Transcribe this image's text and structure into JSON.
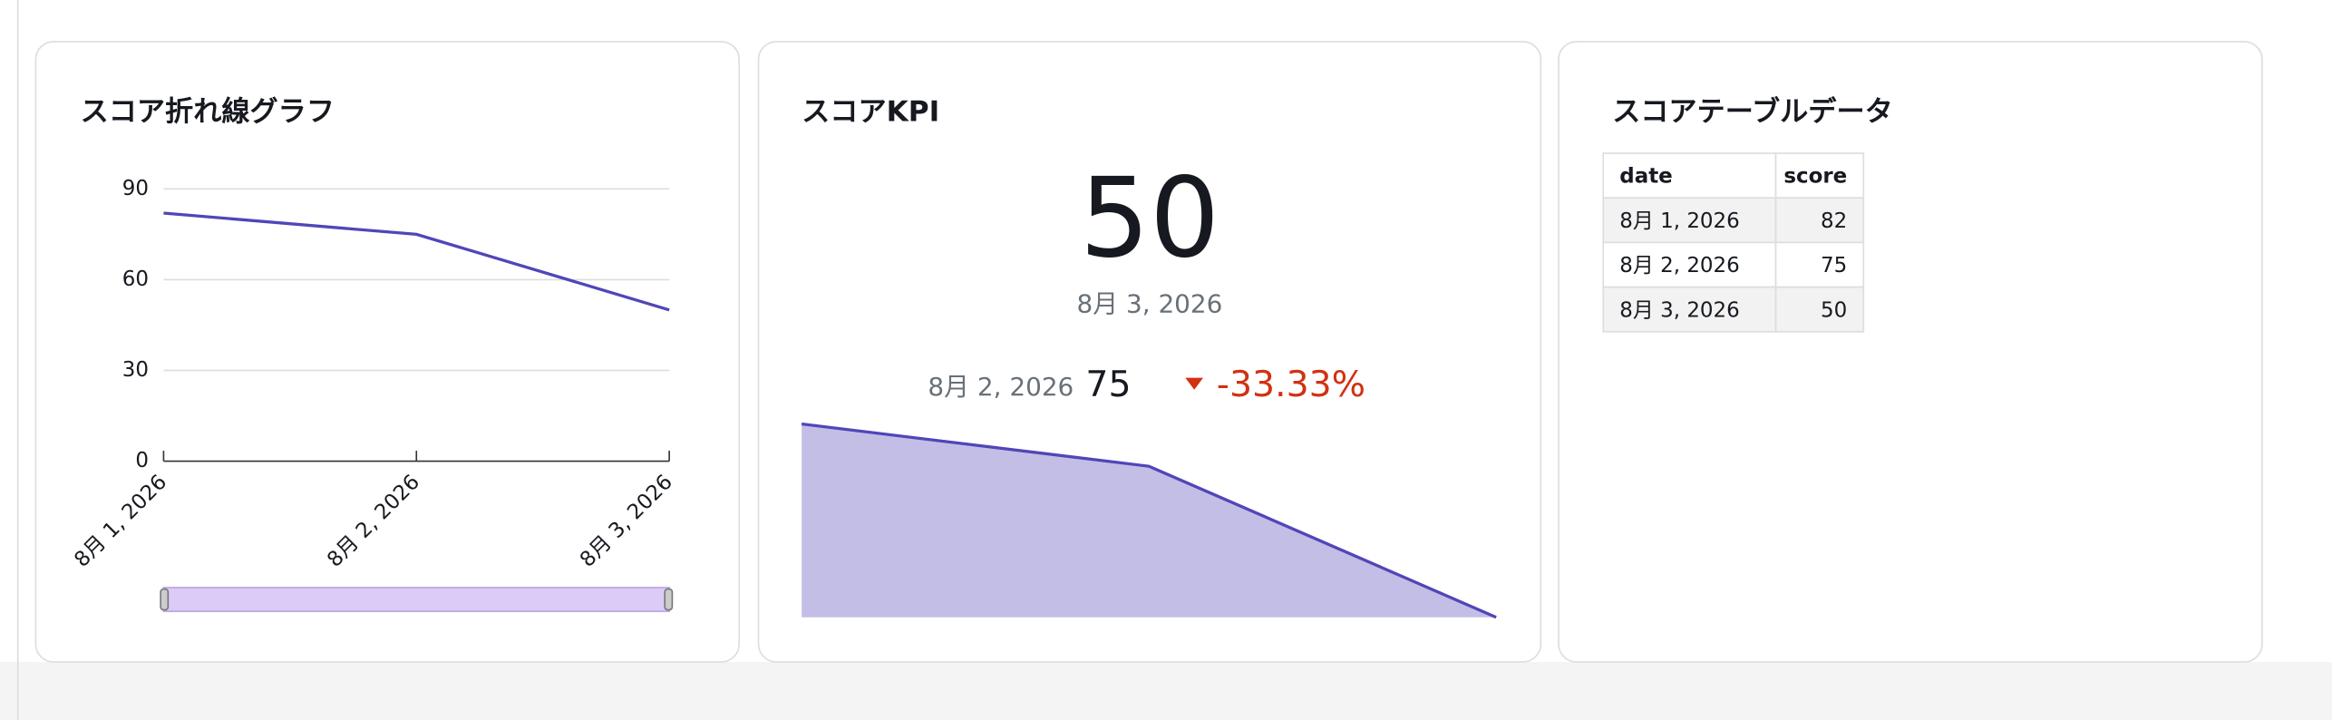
{
  "chart_data": [
    {
      "type": "line",
      "title": "スコア折れ線グラフ",
      "categories": [
        "8月 1, 2026",
        "8月 2, 2026",
        "8月 3, 2026"
      ],
      "values": [
        82,
        75,
        50
      ],
      "color": "#5046b8",
      "ylim": [
        0,
        90
      ],
      "yticks": [
        0,
        30,
        60,
        90
      ],
      "grid": true
    },
    {
      "type": "area",
      "values": [
        82,
        75,
        50
      ],
      "color": "#5046b8",
      "ylim": [
        50,
        82
      ]
    }
  ],
  "kpi": {
    "title": "スコアKPI",
    "value": 50,
    "date": "8月 3, 2026",
    "compare_date": "8月 2, 2026",
    "compare_value": 75,
    "change": {
      "value": -33.33,
      "label": "-33.33%"
    }
  },
  "table": {
    "title": "スコアテーブルデータ",
    "columns": [
      "date",
      "score"
    ],
    "rows": [
      [
        "8月 1, 2026",
        82
      ],
      [
        "8月 2, 2026",
        75
      ],
      [
        "8月 3, 2026",
        50
      ]
    ]
  }
}
